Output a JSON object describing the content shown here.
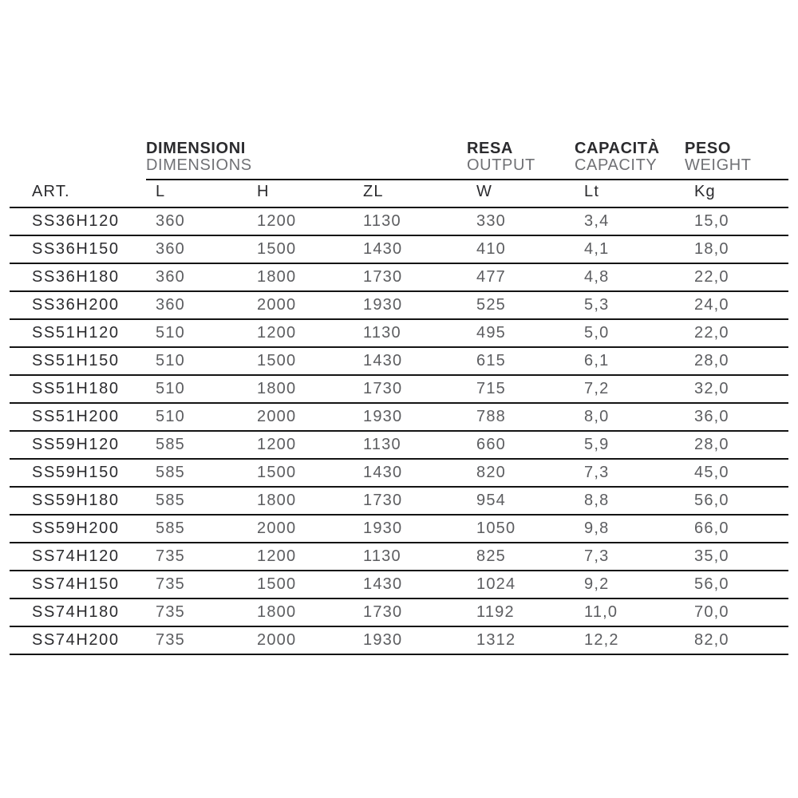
{
  "table": {
    "groups": [
      {
        "title": "DIMENSIONI",
        "subtitle": "DIMENSIONS"
      },
      {
        "title": "RESA",
        "subtitle": "OUTPUT"
      },
      {
        "title": "CAPACITÀ",
        "subtitle": "CAPACITY"
      },
      {
        "title": "PESO",
        "subtitle": "WEIGHT"
      }
    ],
    "columns": [
      "ART.",
      "L",
      "H",
      "ZL",
      "W",
      "Lt",
      "Kg"
    ],
    "rows": [
      [
        "SS36H120",
        "360",
        "1200",
        "1130",
        "330",
        "3,4",
        "15,0"
      ],
      [
        "SS36H150",
        "360",
        "1500",
        "1430",
        "410",
        "4,1",
        "18,0"
      ],
      [
        "SS36H180",
        "360",
        "1800",
        "1730",
        "477",
        "4,8",
        "22,0"
      ],
      [
        "SS36H200",
        "360",
        "2000",
        "1930",
        "525",
        "5,3",
        "24,0"
      ],
      [
        "SS51H120",
        "510",
        "1200",
        "1130",
        "495",
        "5,0",
        "22,0"
      ],
      [
        "SS51H150",
        "510",
        "1500",
        "1430",
        "615",
        "6,1",
        "28,0"
      ],
      [
        "SS51H180",
        "510",
        "1800",
        "1730",
        "715",
        "7,2",
        "32,0"
      ],
      [
        "SS51H200",
        "510",
        "2000",
        "1930",
        "788",
        "8,0",
        "36,0"
      ],
      [
        "SS59H120",
        "585",
        "1200",
        "1130",
        "660",
        "5,9",
        "28,0"
      ],
      [
        "SS59H150",
        "585",
        "1500",
        "1430",
        "820",
        "7,3",
        "45,0"
      ],
      [
        "SS59H180",
        "585",
        "1800",
        "1730",
        "954",
        "8,8",
        "56,0"
      ],
      [
        "SS59H200",
        "585",
        "2000",
        "1930",
        "1050",
        "9,8",
        "66,0"
      ],
      [
        "SS74H120",
        "735",
        "1200",
        "1130",
        "825",
        "7,3",
        "35,0"
      ],
      [
        "SS74H150",
        "735",
        "1500",
        "1430",
        "1024",
        "9,2",
        "56,0"
      ],
      [
        "SS74H180",
        "735",
        "1800",
        "1730",
        "1192",
        "11,0",
        "70,0"
      ],
      [
        "SS74H200",
        "735",
        "2000",
        "1930",
        "1312",
        "12,2",
        "82,0"
      ]
    ]
  },
  "colors": {
    "background": "#ffffff",
    "text_dark": "#2b2b2e",
    "text_data": "#5c5d60",
    "text_subtitle": "#707175",
    "rule": "#141414"
  }
}
